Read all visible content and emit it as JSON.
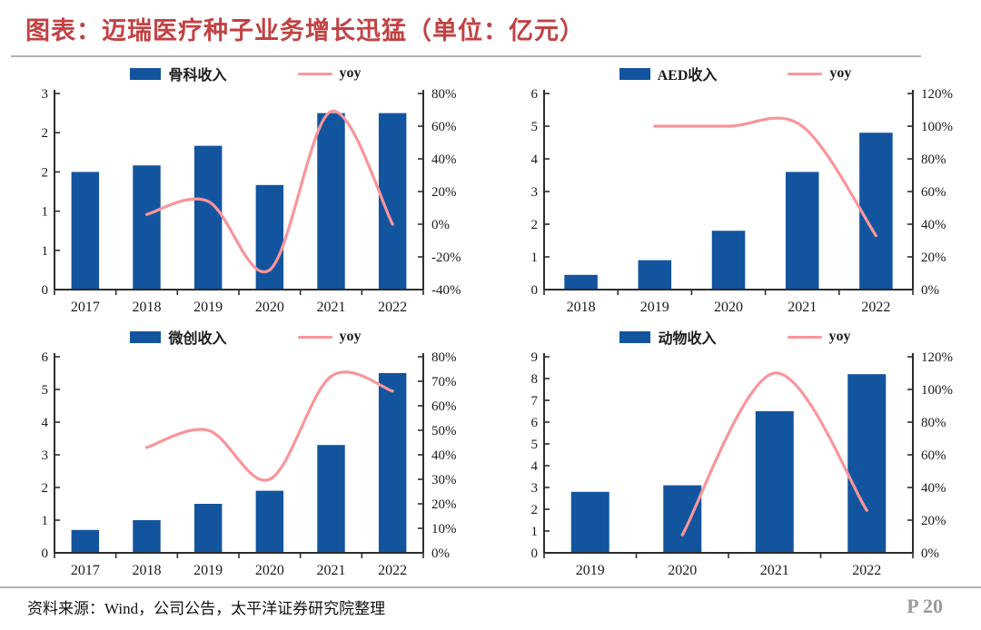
{
  "title": "图表：迈瑞医疗种子业务增长迅猛（单位：亿元）",
  "footer": {
    "source": "资料来源：Wind，公司公告，太平洋证券研究院整理",
    "page": "P 20"
  },
  "colors": {
    "bar": "#13549E",
    "line": "#F9959B",
    "title_red": "#C24243",
    "axis": "#2d2d2d",
    "divider": "#b2b2b2",
    "page_number_gray": "#9b9b9b"
  },
  "chart_data": [
    {
      "type": "bar",
      "combo": "bar+line",
      "legend_position": "top",
      "categories": [
        "2017",
        "2018",
        "2019",
        "2020",
        "2021",
        "2022"
      ],
      "series": [
        {
          "name": "骨科收入",
          "type": "bar",
          "axis": "left",
          "values": [
            1.8,
            1.9,
            2.2,
            1.6,
            2.7,
            2.7
          ]
        },
        {
          "name": "yoy",
          "type": "line",
          "axis": "right",
          "values": [
            null,
            6,
            14,
            -28,
            69,
            0
          ]
        }
      ],
      "left_axis": {
        "min": 0,
        "max": 3,
        "ticks": [
          0,
          0.6,
          1.2,
          1.8,
          2.4,
          3
        ],
        "labels": [
          "0",
          "1",
          "1",
          "2",
          "2",
          "3"
        ]
      },
      "right_axis": {
        "min": -40,
        "max": 80,
        "ticks": [
          -40,
          -20,
          0,
          20,
          40,
          60,
          80
        ],
        "labels": [
          "-40%",
          "-20%",
          "0%",
          "20%",
          "40%",
          "60%",
          "80%"
        ]
      }
    },
    {
      "type": "bar",
      "combo": "bar+line",
      "legend_position": "top",
      "categories": [
        "2018",
        "2019",
        "2020",
        "2021",
        "2022"
      ],
      "series": [
        {
          "name": "AED收入",
          "type": "bar",
          "axis": "left",
          "values": [
            0.45,
            0.9,
            1.8,
            3.6,
            4.8
          ]
        },
        {
          "name": "yoy",
          "type": "line",
          "axis": "right",
          "values": [
            null,
            100,
            100,
            100,
            33
          ]
        }
      ],
      "left_axis": {
        "min": 0,
        "max": 6,
        "ticks": [
          0,
          1,
          2,
          3,
          4,
          5,
          6
        ],
        "labels": [
          "0",
          "1",
          "2",
          "3",
          "4",
          "5",
          "6"
        ]
      },
      "right_axis": {
        "min": 0,
        "max": 120,
        "ticks": [
          0,
          20,
          40,
          60,
          80,
          100,
          120
        ],
        "labels": [
          "0%",
          "20%",
          "40%",
          "60%",
          "80%",
          "100%",
          "120%"
        ]
      }
    },
    {
      "type": "bar",
      "combo": "bar+line",
      "legend_position": "top",
      "categories": [
        "2017",
        "2018",
        "2019",
        "2020",
        "2021",
        "2022"
      ],
      "series": [
        {
          "name": "微创收入",
          "type": "bar",
          "axis": "left",
          "values": [
            0.7,
            1.0,
            1.5,
            1.9,
            3.3,
            5.5
          ]
        },
        {
          "name": "yoy",
          "type": "line",
          "axis": "right",
          "values": [
            null,
            43,
            50,
            30,
            72,
            66
          ]
        }
      ],
      "left_axis": {
        "min": 0,
        "max": 6,
        "ticks": [
          0,
          1,
          2,
          3,
          4,
          5,
          6
        ],
        "labels": [
          "0",
          "1",
          "2",
          "3",
          "4",
          "5",
          "6"
        ]
      },
      "right_axis": {
        "min": 0,
        "max": 80,
        "ticks": [
          0,
          10,
          20,
          30,
          40,
          50,
          60,
          70,
          80
        ],
        "labels": [
          "0%",
          "10%",
          "20%",
          "30%",
          "40%",
          "50%",
          "60%",
          "70%",
          "80%"
        ]
      }
    },
    {
      "type": "bar",
      "combo": "bar+line",
      "legend_position": "top",
      "categories": [
        "2019",
        "2020",
        "2021",
        "2022"
      ],
      "series": [
        {
          "name": "动物收入",
          "type": "bar",
          "axis": "left",
          "values": [
            2.8,
            3.1,
            6.5,
            8.2
          ]
        },
        {
          "name": "yoy",
          "type": "line",
          "axis": "right",
          "values": [
            null,
            11,
            110,
            26
          ]
        }
      ],
      "left_axis": {
        "min": 0,
        "max": 9,
        "ticks": [
          0,
          1,
          2,
          3,
          4,
          5,
          6,
          7,
          8,
          9
        ],
        "labels": [
          "0",
          "1",
          "2",
          "3",
          "4",
          "5",
          "6",
          "7",
          "8",
          "9"
        ]
      },
      "right_axis": {
        "min": 0,
        "max": 120,
        "ticks": [
          0,
          20,
          40,
          60,
          80,
          100,
          120
        ],
        "labels": [
          "0%",
          "20%",
          "40%",
          "60%",
          "80%",
          "100%",
          "120%"
        ]
      }
    }
  ]
}
